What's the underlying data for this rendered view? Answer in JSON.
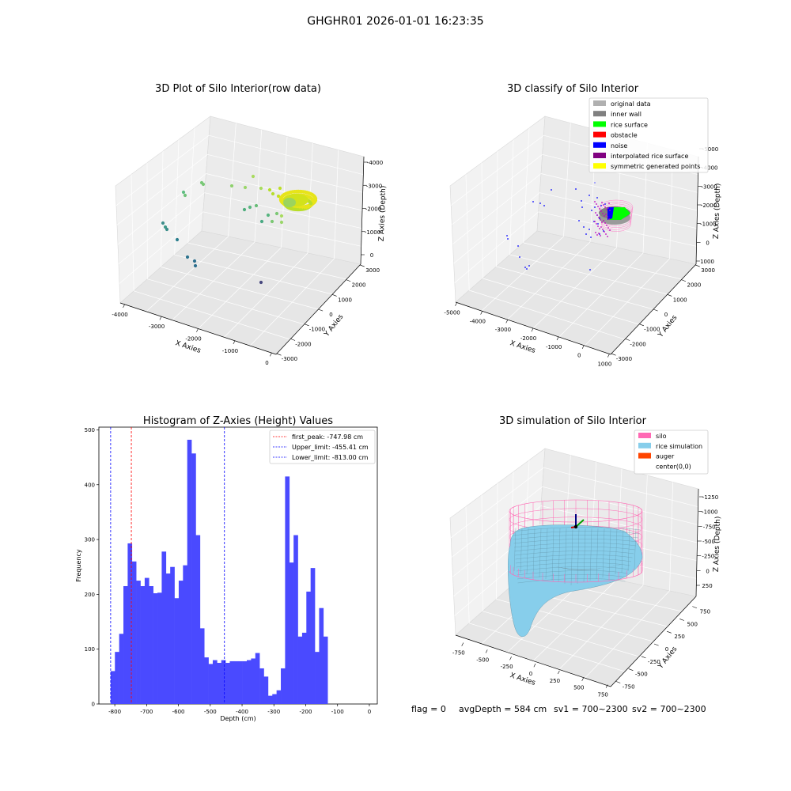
{
  "figure": {
    "suptitle": "GHGHR01 2026-01-01 16:23:35",
    "status_line": {
      "flag": "flag = 0",
      "avg_depth": "avgDepth = 584 cm",
      "sv1": "sv1 = 700~2300",
      "sv2": "sv2 = 700~2300"
    }
  },
  "colors": {
    "hist_bar": "#4a4aff",
    "first_peak": "#ff0000",
    "limits": "#0000ff",
    "silo": "#ff69b4",
    "rice": "#87ceeb",
    "auger": "#ff4500",
    "pane": "#f2f2f2",
    "grid": "#d9d9d9"
  },
  "chart_data": [
    {
      "type": "scatter",
      "title": "3D Plot of Silo Interior(row data)",
      "projection": "3d",
      "xlabel": "X Axies",
      "ylabel": "Y Axies",
      "zlabel": "Z Axies (Depth)",
      "xticks": [
        "-4000",
        "-3000",
        "-2000",
        "-1000",
        "0"
      ],
      "yticks": [
        "-3000",
        "-2000",
        "-1000",
        "0",
        "1000",
        "2000",
        "3000"
      ],
      "zticks": [
        "-4000",
        "-3000",
        "-2000",
        "-1000",
        "0"
      ],
      "colormap": "viridis by depth"
    },
    {
      "type": "scatter",
      "title": "3D classify of Silo Interior",
      "projection": "3d",
      "xlabel": "X Axies",
      "ylabel": "Y Axies",
      "zlabel": "Z Axies (Depth)",
      "xticks": [
        "-5000",
        "-4000",
        "-3000",
        "-2000",
        "-1000",
        "0",
        "1000"
      ],
      "yticks": [
        "-3000",
        "-2000",
        "-1000",
        "0",
        "1000",
        "2000",
        "3000"
      ],
      "zticks": [
        "-5000",
        "-4000",
        "-3000",
        "-2000",
        "-1000",
        "0",
        "1000"
      ],
      "legend": [
        {
          "name": "original data",
          "color": "#b0b0b0"
        },
        {
          "name": "inner wall",
          "color": "#808080"
        },
        {
          "name": "rice surface",
          "color": "#00ff00"
        },
        {
          "name": "obstacle",
          "color": "#ff0000"
        },
        {
          "name": "noise",
          "color": "#0000ff"
        },
        {
          "name": "interpolated rice surface",
          "color": "#800080"
        },
        {
          "name": "symmetric generated points",
          "color": "#ffff00"
        }
      ],
      "legend_loc": "top-right"
    },
    {
      "type": "bar",
      "title": "Histogram of Z-Axies (Height) Values",
      "xlabel": "Depth (cm)",
      "ylabel": "Frequency",
      "xlim": [
        -850,
        25
      ],
      "ylim": [
        0,
        505
      ],
      "xticks": [
        -800,
        -700,
        -600,
        -500,
        -400,
        -300,
        -200,
        -100,
        0
      ],
      "yticks": [
        0,
        100,
        200,
        300,
        400,
        500
      ],
      "bin_start": -813,
      "bin_width": 13.37,
      "values": [
        60,
        95,
        128,
        215,
        293,
        260,
        225,
        215,
        230,
        215,
        202,
        203,
        278,
        238,
        250,
        193,
        225,
        253,
        482,
        457,
        308,
        138,
        85,
        73,
        80,
        75,
        80,
        75,
        78,
        78,
        78,
        78,
        80,
        83,
        93,
        65,
        50,
        15,
        18,
        25,
        65,
        415,
        258,
        308,
        123,
        130,
        205,
        248,
        95,
        175,
        123
      ],
      "vlines": [
        {
          "name": "first_peak: -747.98 cm",
          "x": -747.98,
          "color": "#ff0000"
        },
        {
          "name": "Upper_limit: -455.41 cm",
          "x": -455.41,
          "color": "#0000ff"
        },
        {
          "name": "Lower_limit: -813.00 cm",
          "x": -813.0,
          "color": "#0000ff"
        }
      ],
      "legend_loc": "top-right"
    },
    {
      "type": "surface",
      "title": "3D simulation of Silo Interior",
      "projection": "3d",
      "xlabel": "X Axies",
      "ylabel": "Y Axies",
      "zlabel": "Z Axies (Depth)",
      "xticks": [
        "-750",
        "-500",
        "-250",
        "0",
        "250",
        "500",
        "750"
      ],
      "yticks": [
        "-750",
        "-500",
        "-250",
        "0",
        "250",
        "500",
        "750"
      ],
      "zticks": [
        "-1250",
        "-1000",
        "-750",
        "-500",
        "-250",
        "0",
        "250"
      ],
      "legend": [
        {
          "name": "silo",
          "color": "#ff69b4"
        },
        {
          "name": "rice simulation",
          "color": "#87ceeb"
        },
        {
          "name": "auger",
          "color": "#ff4500"
        },
        {
          "name": "center(0,0)",
          "color": ""
        }
      ],
      "legend_loc": "top-right"
    }
  ]
}
